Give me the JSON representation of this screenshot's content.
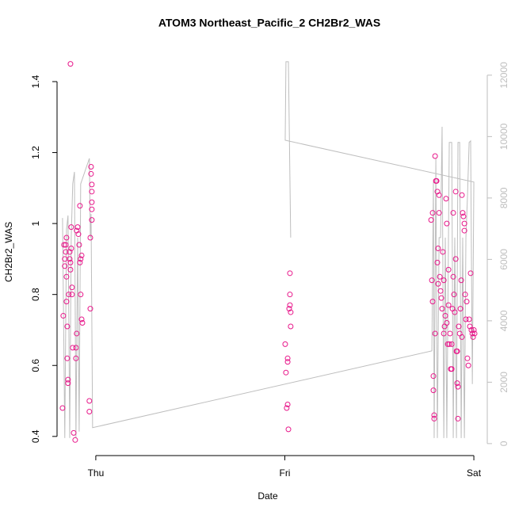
{
  "chart_data": {
    "type": "scatter",
    "title": "ATOM3 Northeast_Pacific_2 CH2Br2_WAS",
    "x_label": "Date",
    "y_label": "CH2Br2_WAS",
    "xlim": [
      -0.205,
      2.071
    ],
    "xticks": [
      {
        "value": 0,
        "label": "Thu"
      },
      {
        "value": 1,
        "label": "Fri"
      },
      {
        "value": 2,
        "label": "Sat"
      }
    ],
    "ylim": [
      0.346,
      1.496
    ],
    "yticks": [
      0.4,
      0.6,
      0.8,
      1.0,
      1.2,
      1.4
    ],
    "y2lim": [
      -390,
      12900
    ],
    "y2ticks": [
      0,
      2000,
      4000,
      6000,
      8000,
      10000,
      12000
    ],
    "series": [
      {
        "color": "#e8178a",
        "x": [
          -0.176,
          -0.172,
          -0.168,
          -0.164,
          -0.164,
          -0.159,
          -0.159,
          -0.155,
          -0.155,
          -0.155,
          -0.151,
          -0.151,
          -0.147,
          -0.147,
          -0.143,
          -0.138,
          -0.138,
          -0.134,
          -0.134,
          -0.13,
          -0.13,
          -0.126,
          -0.126,
          -0.122,
          -0.117,
          -0.109,
          -0.105,
          -0.105,
          -0.101,
          -0.101,
          -0.096,
          -0.092,
          -0.088,
          -0.084,
          -0.08,
          -0.075,
          -0.08,
          -0.075,
          -0.071,
          -0.084,
          -0.034,
          -0.034,
          -0.029,
          -0.029,
          -0.025,
          -0.025,
          -0.021,
          -0.021,
          -0.021,
          -0.021,
          -0.021,
          -0.134,
          1.002,
          1.006,
          1.01,
          1.015,
          1.015,
          1.015,
          1.019,
          1.023,
          1.027,
          1.027,
          1.027,
          1.031,
          1.031,
          1.774,
          1.778,
          1.782,
          1.782,
          1.786,
          1.786,
          1.79,
          1.79,
          1.795,
          1.795,
          1.799,
          1.803,
          1.807,
          1.807,
          1.811,
          1.811,
          1.816,
          1.816,
          1.82,
          1.824,
          1.828,
          1.832,
          1.836,
          1.841,
          1.845,
          1.849,
          1.853,
          1.857,
          1.857,
          1.862,
          1.866,
          1.866,
          1.87,
          1.874,
          1.878,
          1.883,
          1.887,
          1.891,
          1.891,
          1.895,
          1.899,
          1.904,
          1.904,
          1.908,
          1.912,
          1.912,
          1.916,
          1.916,
          1.92,
          1.925,
          1.929,
          1.933,
          1.937,
          1.941,
          1.945,
          1.95,
          1.95,
          1.954,
          1.958,
          1.962,
          1.966,
          1.971,
          1.975,
          1.979,
          1.983,
          1.987,
          1.992,
          1.996,
          2.0,
          2.004,
          1.937,
          1.883,
          1.841
        ],
        "values": [
          0.48,
          0.74,
          0.94,
          0.9,
          0.88,
          0.94,
          0.92,
          0.96,
          0.85,
          0.78,
          0.71,
          0.62,
          0.56,
          0.55,
          0.8,
          0.92,
          0.9,
          0.89,
          0.87,
          0.93,
          0.99,
          0.82,
          0.8,
          0.65,
          0.41,
          0.39,
          0.62,
          0.65,
          0.69,
          0.98,
          0.99,
          0.97,
          0.94,
          0.89,
          0.9,
          0.91,
          0.8,
          0.73,
          0.72,
          1.05,
          0.5,
          0.47,
          0.76,
          0.96,
          1.16,
          1.14,
          1.11,
          1.09,
          1.06,
          1.04,
          1.01,
          1.45,
          0.66,
          0.58,
          0.48,
          0.62,
          0.61,
          0.49,
          0.42,
          0.76,
          0.86,
          0.8,
          0.77,
          0.75,
          0.71,
          1.01,
          0.84,
          0.78,
          1.03,
          0.57,
          0.53,
          0.46,
          0.45,
          0.69,
          1.19,
          1.12,
          1.12,
          1.09,
          0.89,
          0.83,
          0.93,
          1.08,
          1.03,
          0.85,
          0.81,
          0.79,
          0.76,
          0.92,
          0.84,
          0.71,
          0.74,
          1.07,
          0.72,
          1.0,
          0.66,
          0.87,
          0.77,
          0.66,
          0.69,
          0.59,
          0.59,
          0.76,
          0.85,
          1.03,
          0.8,
          0.75,
          1.09,
          0.9,
          0.64,
          0.64,
          0.55,
          0.45,
          0.54,
          0.71,
          0.69,
          0.76,
          0.84,
          1.08,
          1.03,
          1.02,
          1.0,
          0.98,
          0.8,
          0.73,
          0.78,
          0.62,
          0.6,
          0.73,
          0.71,
          0.86,
          0.7,
          0.69,
          0.68,
          0.7,
          0.69,
          0.68,
          0.66,
          0.69
        ]
      },
      {
        "type": "line",
        "axis": "y2",
        "color": "#bebebe",
        "x": [
          -0.176,
          -0.164,
          -0.155,
          -0.147,
          -0.138,
          -0.13,
          -0.122,
          -0.113,
          -0.105,
          -0.096,
          -0.088,
          -0.08,
          -0.034,
          -0.029,
          -0.025,
          -0.017,
          1.778,
          1.786,
          1.79,
          1.799,
          1.807,
          1.816,
          1.824,
          1.832,
          1.841,
          1.849,
          1.857,
          1.87,
          1.883,
          1.891,
          1.899,
          1.908,
          1.916,
          1.925,
          1.933,
          1.941,
          1.95,
          1.958,
          1.966,
          1.975,
          1.983,
          1.992,
          2.0,
          1.002,
          1.006,
          1.019,
          1.031
        ],
        "values": [
          7350,
          180,
          6970,
          7430,
          180,
          6710,
          8460,
          8850,
          180,
          6710,
          390,
          8460,
          9290,
          6710,
          7480,
          520,
          3020,
          8520,
          180,
          9290,
          180,
          6710,
          6710,
          10320,
          180,
          6710,
          180,
          9810,
          9810,
          180,
          6710,
          180,
          9810,
          9810,
          180,
          6710,
          180,
          6710,
          8000,
          9810,
          9860,
          1940,
          8520,
          9880,
          12440,
          12440,
          6710
        ]
      }
    ]
  }
}
